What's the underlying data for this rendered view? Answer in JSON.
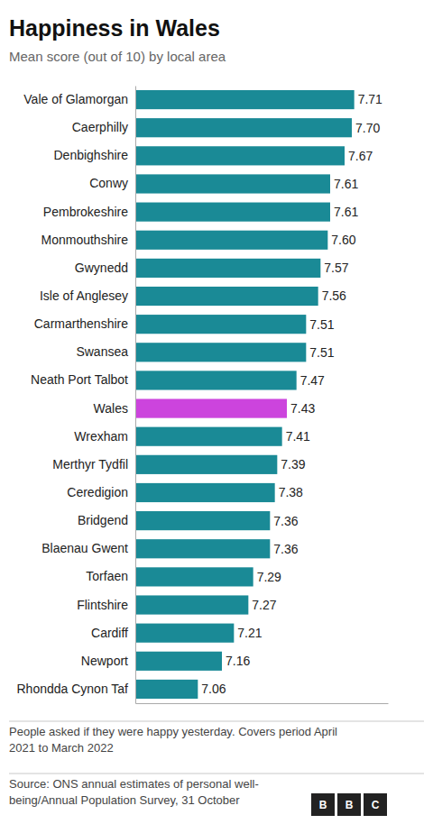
{
  "chart_data": {
    "type": "bar",
    "orientation": "horizontal",
    "title": "Happiness in Wales",
    "subtitle": "Mean score (out of 10) by local area",
    "categories": [
      "Vale of Glamorgan",
      "Caerphilly",
      "Denbighshire",
      "Conwy",
      "Pembrokeshire",
      "Monmouthshire",
      "Gwynedd",
      "Isle of Anglesey",
      "Carmarthenshire",
      "Swansea",
      "Neath Port Talbot",
      "Wales",
      "Wrexham",
      "Merthyr Tydfil",
      "Ceredigion",
      "Bridgend",
      "Blaenau Gwent",
      "Torfaen",
      "Flintshire",
      "Cardiff",
      "Newport",
      "Rhondda Cynon Taf"
    ],
    "values": [
      7.71,
      7.7,
      7.67,
      7.61,
      7.61,
      7.6,
      7.57,
      7.56,
      7.51,
      7.51,
      7.47,
      7.43,
      7.41,
      7.39,
      7.38,
      7.36,
      7.36,
      7.29,
      7.27,
      7.21,
      7.16,
      7.06
    ],
    "value_labels": [
      "7.71",
      "7.70",
      "7.67",
      "7.61",
      "7.61",
      "7.60",
      "7.57",
      "7.56",
      "7.51",
      "7.51",
      "7.47",
      "7.43",
      "7.41",
      "7.39",
      "7.38",
      "7.36",
      "7.36",
      "7.29",
      "7.27",
      "7.21",
      "7.16",
      "7.06"
    ],
    "colors": [
      "#1a8a96",
      "#1a8a96",
      "#1a8a96",
      "#1a8a96",
      "#1a8a96",
      "#1a8a96",
      "#1a8a96",
      "#1a8a96",
      "#1a8a96",
      "#1a8a96",
      "#1a8a96",
      "#cc44dd",
      "#1a8a96",
      "#1a8a96",
      "#1a8a96",
      "#1a8a96",
      "#1a8a96",
      "#1a8a96",
      "#1a8a96",
      "#1a8a96",
      "#1a8a96",
      "#1a8a96"
    ],
    "xlim": [
      6.8,
      7.85
    ],
    "data_labels": true,
    "tick_labels": "y",
    "grid": false,
    "footnotes": [
      "People asked if they were happy yesterday. Covers period April\n2021 to March 2022",
      "Source: ONS annual estimates of personal well-\nbeing/Annual Population Survey, 31 October"
    ],
    "logo": [
      "B",
      "B",
      "C"
    ]
  }
}
